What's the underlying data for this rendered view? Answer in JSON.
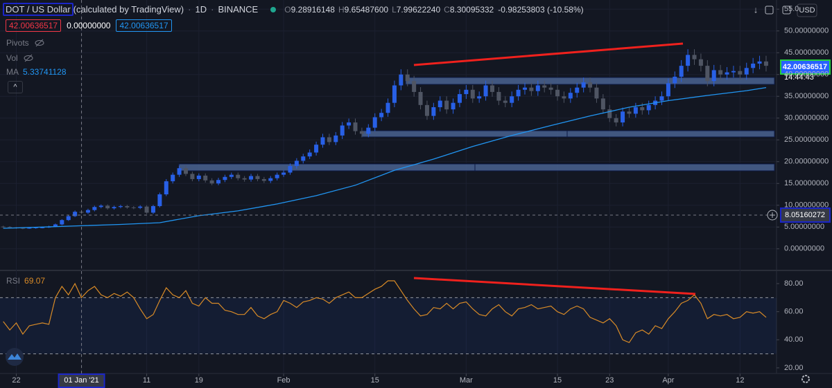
{
  "header": {
    "symbol": "DOT / US Dollar",
    "source": "(calculated by TradingView)",
    "interval": "1D",
    "exchange": "BINANCE",
    "ohlc": [
      {
        "label": "O",
        "value": "9.28916148"
      },
      {
        "label": "H",
        "value": "9.65487600"
      },
      {
        "label": "L",
        "value": "7.99622240"
      },
      {
        "label": "C",
        "value": "8.30095332"
      }
    ],
    "change": "-0.98253803 (-10.58%)",
    "indicator_values": [
      "42.00636517",
      "0.00000000",
      "42.00636517"
    ],
    "pivots": "Pivots",
    "vol": "Vol",
    "ma_value": "5.33741128"
  },
  "price_scale": {
    "currency": "USD",
    "last_price": "42.00636517",
    "countdown": "14:44:43",
    "crosshair_price": "8.05160272"
  },
  "chart_data": [
    {
      "type": "candlestick",
      "up_color": "#2860e6",
      "down_color": "#4f5563",
      "grid": true,
      "xlim": [
        -0.5,
        118.6
      ],
      "ylim": [
        -4.8,
        57.1
      ],
      "xticks": [
        {
          "value": 2,
          "label": "22"
        },
        {
          "value": 12,
          "label": "01 Jan '21"
        },
        {
          "value": 22,
          "label": "11"
        },
        {
          "value": 30,
          "label": "19"
        },
        {
          "value": 43,
          "label": "Feb"
        },
        {
          "value": 57,
          "label": "15"
        },
        {
          "value": 71,
          "label": "Mar"
        },
        {
          "value": 85,
          "label": "15"
        },
        {
          "value": 93,
          "label": "23"
        },
        {
          "value": 102,
          "label": "Apr"
        },
        {
          "value": 113,
          "label": "12"
        }
      ],
      "yticks": [
        {
          "value": 0,
          "label": "0.00000000"
        },
        {
          "value": 5,
          "label": "5.00000000"
        },
        {
          "value": 10,
          "label": "10.00000000"
        },
        {
          "value": 15,
          "label": "15.00000000"
        },
        {
          "value": 20,
          "label": "20.00000000"
        },
        {
          "value": 25,
          "label": "25.00000000"
        },
        {
          "value": 30,
          "label": "30.00000000"
        },
        {
          "value": 35,
          "label": "35.00000000"
        },
        {
          "value": 40,
          "label": "40.00000000"
        },
        {
          "value": 45,
          "label": "45.00000000"
        },
        {
          "value": 50,
          "label": "50.00000000"
        },
        {
          "value": 55,
          "label": "55.0"
        }
      ],
      "open": [
        5.1,
        5.0,
        4.9,
        4.8,
        4.7,
        4.8,
        4.9,
        4.9,
        5.1,
        5.6,
        6.6,
        7.5,
        8.5,
        8.3,
        8.9,
        9.6,
        9.9,
        9.3,
        9.6,
        9.8,
        9.5,
        9.4,
        9.7,
        8.3,
        9.8,
        12.5,
        15.5,
        17.0,
        18.5,
        17.2,
        16.0,
        16.8,
        15.7,
        15.0,
        15.8,
        16.5,
        17.0,
        16.2,
        15.9,
        16.7,
        16.0,
        15.6,
        16.2,
        17.0,
        17.5,
        19.0,
        20.2,
        21.2,
        22.1,
        23.9,
        25.6,
        24.5,
        26.0,
        28.3,
        29.0,
        27.0,
        26.4,
        27.8,
        30.2,
        31.2,
        33.5,
        37.5,
        40.0,
        38.5,
        36.0,
        33.0,
        30.5,
        32.5,
        34.0,
        32.0,
        33.5,
        35.5,
        36.5,
        34.5,
        35.0,
        37.5,
        36.0,
        34.0,
        33.5,
        35.0,
        36.5,
        37.0,
        36.2,
        37.5,
        37.0,
        36.5,
        35.0,
        34.5,
        35.8,
        37.0,
        38.2,
        37.0,
        34.5,
        32.0,
        30.0,
        29.0,
        31.5,
        31.0,
        32.5,
        31.8,
        33.0,
        34.0,
        35.0,
        38.0,
        39.5,
        42.0,
        44.5,
        43.5,
        42.0,
        38.5,
        41.0,
        40.0,
        40.5,
        40.8,
        40.0,
        41.5,
        42.5,
        43.0
      ],
      "high": [
        5.3,
        5.2,
        5.0,
        4.9,
        4.9,
        5.0,
        5.1,
        5.3,
        5.8,
        6.8,
        7.8,
        8.8,
        8.8,
        9.2,
        9.9,
        10.2,
        10.2,
        9.9,
        10.1,
        10.1,
        9.8,
        10.0,
        10.0,
        10.1,
        12.9,
        16.0,
        17.5,
        19.1,
        19.1,
        17.7,
        17.3,
        17.3,
        16.2,
        16.3,
        17.0,
        17.5,
        17.5,
        16.7,
        17.2,
        17.2,
        16.5,
        16.7,
        17.5,
        18.0,
        19.6,
        20.8,
        21.8,
        22.8,
        24.6,
        26.4,
        26.4,
        26.8,
        29.1,
        29.9,
        29.9,
        27.8,
        28.6,
        31.1,
        32.1,
        34.5,
        38.6,
        41.2,
        41.2,
        39.7,
        37.1,
        34.0,
        33.5,
        35.0,
        35.0,
        34.5,
        36.6,
        37.6,
        37.6,
        36.1,
        38.6,
        38.6,
        37.1,
        35.0,
        36.1,
        37.6,
        38.1,
        38.1,
        38.6,
        38.6,
        38.1,
        37.6,
        36.1,
        36.9,
        38.1,
        39.3,
        39.3,
        38.1,
        35.5,
        33.0,
        30.9,
        32.4,
        32.4,
        33.5,
        33.5,
        34.0,
        35.0,
        36.1,
        39.1,
        40.7,
        43.3,
        45.8,
        45.8,
        44.8,
        43.3,
        42.2,
        42.2,
        41.7,
        42.0,
        42.0,
        42.7,
        43.8,
        44.3,
        44.3
      ],
      "low": [
        4.8,
        4.7,
        4.6,
        4.5,
        4.6,
        4.6,
        4.7,
        4.8,
        5.0,
        5.4,
        6.4,
        7.3,
        8.0,
        8.0,
        8.6,
        9.3,
        9.0,
        9.0,
        9.3,
        9.2,
        9.1,
        9.1,
        8.0,
        8.0,
        9.5,
        12.1,
        15.0,
        16.5,
        16.7,
        15.5,
        15.5,
        15.2,
        14.6,
        14.6,
        15.3,
        16.0,
        15.7,
        15.4,
        15.4,
        15.5,
        15.1,
        15.1,
        15.7,
        16.5,
        17.0,
        18.4,
        19.6,
        20.6,
        21.4,
        23.2,
        23.8,
        23.8,
        25.2,
        27.5,
        26.2,
        25.6,
        25.6,
        27.0,
        29.3,
        30.3,
        32.5,
        36.4,
        37.3,
        34.9,
        32.0,
        29.6,
        29.6,
        31.5,
        31.0,
        31.0,
        32.5,
        34.4,
        33.5,
        33.5,
        34.0,
        34.9,
        33.0,
        32.5,
        32.5,
        34.0,
        35.4,
        35.1,
        35.1,
        35.9,
        35.4,
        34.0,
        33.5,
        33.5,
        34.7,
        35.9,
        35.9,
        33.5,
        31.0,
        29.1,
        28.1,
        28.1,
        30.1,
        30.1,
        30.8,
        30.8,
        32.0,
        33.0,
        34.0,
        36.9,
        38.3,
        40.7,
        42.2,
        40.7,
        37.3,
        37.3,
        38.8,
        38.8,
        39.3,
        38.8,
        38.8,
        40.3,
        41.2,
        40.7
      ],
      "close": [
        5.0,
        4.9,
        4.8,
        4.7,
        4.8,
        4.9,
        4.9,
        5.1,
        5.6,
        6.6,
        7.5,
        8.5,
        8.3,
        8.9,
        9.6,
        9.9,
        9.3,
        9.6,
        9.8,
        9.5,
        9.4,
        9.7,
        8.3,
        9.8,
        12.5,
        15.5,
        17.0,
        18.5,
        17.2,
        16.0,
        16.8,
        15.7,
        15.0,
        15.8,
        16.5,
        17.0,
        16.2,
        15.9,
        16.7,
        16.0,
        15.6,
        16.2,
        17.0,
        17.5,
        19.0,
        20.2,
        21.2,
        22.1,
        23.9,
        25.6,
        24.5,
        26.0,
        28.3,
        29.0,
        27.0,
        26.4,
        27.8,
        30.2,
        31.2,
        33.5,
        37.5,
        40.0,
        38.5,
        36.0,
        33.0,
        30.5,
        32.5,
        34.0,
        32.0,
        33.5,
        35.5,
        36.5,
        34.5,
        35.0,
        37.5,
        36.0,
        34.0,
        33.5,
        35.0,
        36.5,
        37.0,
        36.2,
        37.5,
        37.0,
        36.5,
        35.0,
        34.5,
        35.8,
        37.0,
        38.2,
        37.0,
        34.5,
        32.0,
        30.0,
        29.0,
        31.5,
        31.0,
        32.5,
        31.8,
        33.0,
        34.0,
        35.0,
        38.0,
        39.5,
        42.0,
        44.5,
        43.5,
        42.0,
        38.5,
        41.0,
        40.0,
        40.5,
        40.8,
        40.0,
        41.5,
        42.5,
        43.0,
        42.0
      ],
      "overlays": [
        {
          "name": "MA",
          "color": "#2196f3",
          "x": [
            0,
            6,
            12,
            18,
            24,
            30,
            36,
            42,
            48,
            54,
            60,
            66,
            72,
            78,
            84,
            90,
            96,
            102,
            108,
            114,
            117
          ],
          "values": [
            4.7,
            5.0,
            5.3,
            5.6,
            6.0,
            7.6,
            8.7,
            10.3,
            12.2,
            14.6,
            18.0,
            20.6,
            23.5,
            26.0,
            28.3,
            30.5,
            32.5,
            34.0,
            35.2,
            36.3,
            37.0
          ]
        }
      ]
    },
    {
      "type": "line",
      "name": "RSI",
      "legend_value": "69.07",
      "color": "#d98b27",
      "ylim": [
        16,
        88.4
      ],
      "levels": [
        70,
        30
      ],
      "yticks": [
        {
          "value": 80,
          "label": "80.00"
        },
        {
          "value": 60,
          "label": "60.00"
        },
        {
          "value": 40,
          "label": "40.00"
        },
        {
          "value": 20,
          "label": "20.00"
        }
      ],
      "values": [
        53,
        47,
        52,
        44,
        50,
        51,
        52,
        51,
        70,
        78,
        72,
        80,
        70,
        75,
        78,
        72,
        70,
        73,
        71,
        74,
        70,
        62,
        55,
        58,
        68,
        77,
        72,
        70,
        75,
        66,
        64,
        70,
        66,
        66,
        61,
        60,
        58,
        58,
        63,
        57,
        55,
        58,
        60,
        68,
        66,
        63,
        67,
        68,
        70,
        69,
        66,
        70,
        72,
        74,
        70,
        70,
        73,
        76,
        78,
        82,
        82,
        75,
        68,
        62,
        57,
        58,
        63,
        62,
        66,
        62,
        66,
        67,
        62,
        58,
        57,
        62,
        65,
        60,
        57,
        62,
        63,
        65,
        62,
        63,
        64,
        60,
        58,
        62,
        64,
        62,
        56,
        54,
        52,
        55,
        50,
        40,
        38,
        45,
        47,
        44,
        50,
        48,
        55,
        60,
        66,
        68,
        72,
        66,
        55,
        58,
        57,
        58,
        55,
        56,
        60,
        59,
        60,
        56
      ]
    }
  ]
}
